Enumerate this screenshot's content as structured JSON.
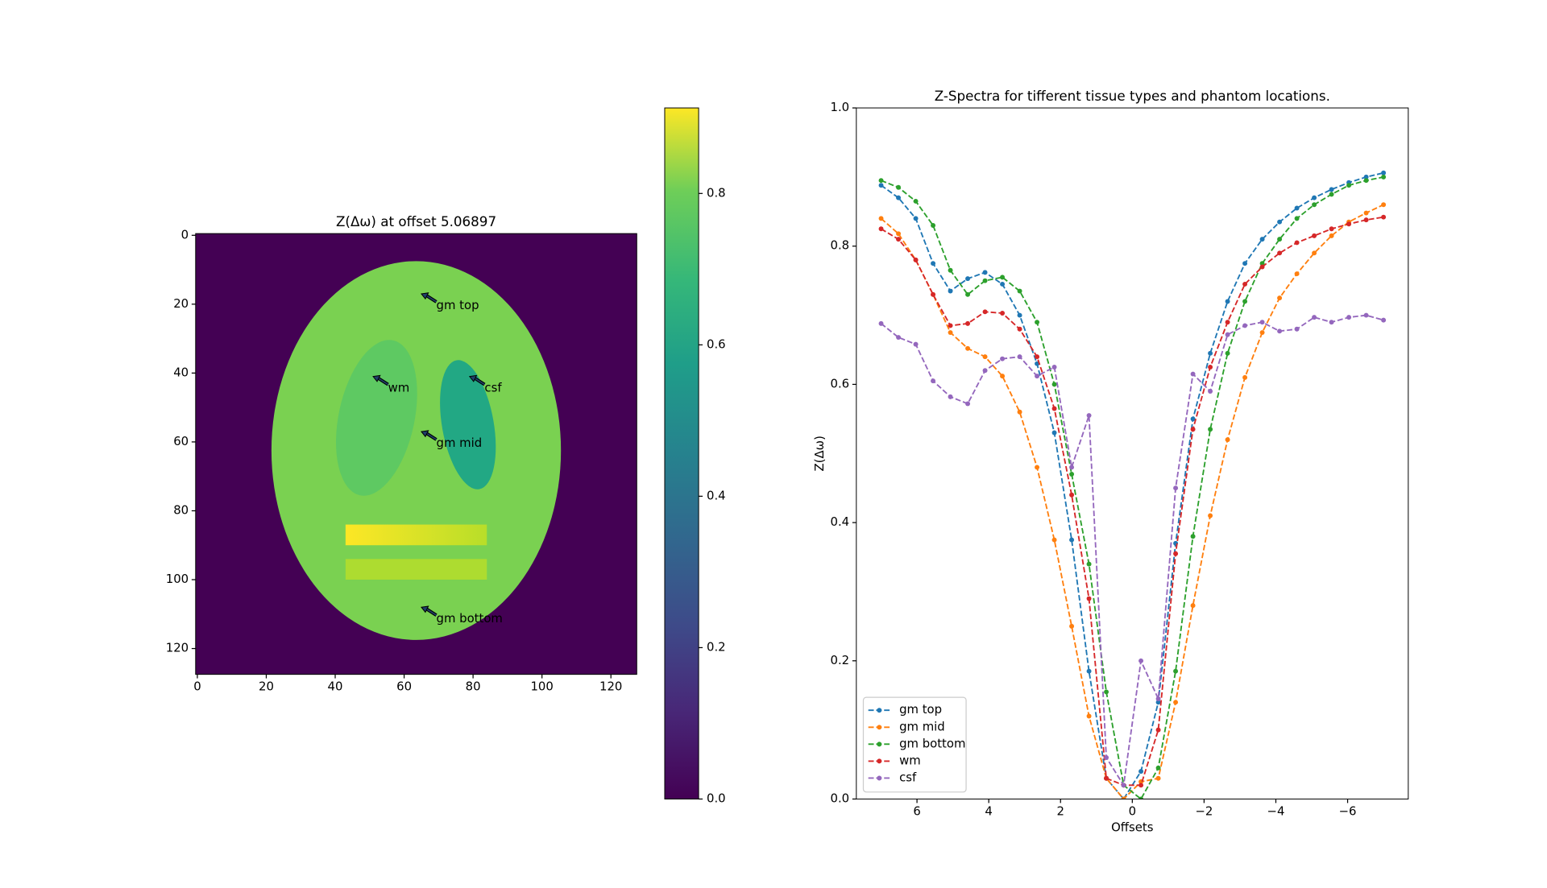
{
  "chart_data": [
    {
      "type": "image",
      "title": "Z(Δω) at offset 5.06897",
      "xlim": [
        -0.5,
        127.5
      ],
      "ylim": [
        127.5,
        -0.5
      ],
      "xticks": [
        0,
        20,
        40,
        60,
        80,
        100,
        120
      ],
      "yticks": [
        0,
        20,
        40,
        60,
        80,
        100,
        120
      ],
      "colormap": "viridis",
      "clim": [
        0,
        0.913
      ],
      "cticks": [
        {
          "value": 0,
          "label": "0.0"
        },
        0.2,
        0.4,
        0.6,
        0.8
      ],
      "annotations": [
        {
          "text": "gm top",
          "x": 65,
          "y": 17
        },
        {
          "text": "wm",
          "x": 51,
          "y": 41
        },
        {
          "text": "csf",
          "x": 79,
          "y": 41
        },
        {
          "text": "gm mid",
          "x": 65,
          "y": 57
        },
        {
          "text": "gm bottom",
          "x": 65,
          "y": 108
        }
      ]
    },
    {
      "type": "line",
      "title": "Z-Spectra for tifferent tissue types and phantom locations.",
      "xlabel": "Offsets",
      "ylabel": "Z(Δω)",
      "x": [
        7,
        6.51724,
        6.03448,
        5.55172,
        5.06897,
        4.58621,
        4.10345,
        3.62069,
        3.13793,
        2.65517,
        2.17241,
        1.68966,
        1.2069,
        0.72414,
        0.24138,
        -0.24138,
        -0.72414,
        -1.2069,
        -1.68966,
        -2.17241,
        -2.65517,
        -3.13793,
        -3.62069,
        -4.10345,
        -4.58621,
        -5.06897,
        -5.55172,
        -6.03448,
        -6.51724,
        -7
      ],
      "xlim": [
        7.69,
        -7.69
      ],
      "xticks": [
        6,
        4,
        2,
        0,
        {
          "value": -2,
          "label": "−2"
        },
        {
          "value": -4,
          "label": "−4"
        },
        {
          "value": -6,
          "label": "−6"
        }
      ],
      "ylim": [
        0,
        1
      ],
      "yticks": [
        {
          "value": 0,
          "label": "0.0"
        },
        0.2,
        0.4,
        0.6,
        0.8,
        {
          "value": 1,
          "label": "1.0"
        }
      ],
      "legend": "lower left",
      "series": [
        {
          "name": "gm top",
          "color": "#1f77b4",
          "values": [
            0.888,
            0.87,
            0.84,
            0.775,
            0.735,
            0.753,
            0.762,
            0.745,
            0.7,
            0.63,
            0.53,
            0.375,
            0.185,
            0.03,
            0.0,
            0.04,
            0.14,
            0.37,
            0.55,
            0.645,
            0.72,
            0.775,
            0.81,
            0.835,
            0.855,
            0.87,
            0.882,
            0.892,
            0.9,
            0.906
          ]
        },
        {
          "name": "gm mid",
          "color": "#ff7f0e",
          "values": [
            0.84,
            0.818,
            0.78,
            0.73,
            0.675,
            0.652,
            0.64,
            0.612,
            0.56,
            0.48,
            0.375,
            0.25,
            0.12,
            0.03,
            0.0,
            0.025,
            0.03,
            0.14,
            0.28,
            0.41,
            0.52,
            0.61,
            0.675,
            0.725,
            0.76,
            0.79,
            0.815,
            0.835,
            0.848,
            0.86
          ]
        },
        {
          "name": "gm bottom",
          "color": "#2ca02c",
          "values": [
            0.895,
            0.885,
            0.865,
            0.83,
            0.765,
            0.73,
            0.75,
            0.755,
            0.735,
            0.69,
            0.6,
            0.47,
            0.34,
            0.155,
            0.02,
            0.0,
            0.045,
            0.185,
            0.38,
            0.535,
            0.645,
            0.72,
            0.775,
            0.81,
            0.84,
            0.86,
            0.875,
            0.888,
            0.895,
            0.9
          ]
        },
        {
          "name": "wm",
          "color": "#d62728",
          "values": [
            0.825,
            0.81,
            0.78,
            0.73,
            0.685,
            0.688,
            0.705,
            0.703,
            0.68,
            0.64,
            0.565,
            0.44,
            0.29,
            0.03,
            0.02,
            0.02,
            0.1,
            0.355,
            0.535,
            0.625,
            0.69,
            0.745,
            0.77,
            0.79,
            0.805,
            0.815,
            0.825,
            0.832,
            0.838,
            0.842
          ]
        },
        {
          "name": "csf",
          "color": "#9467bd",
          "values": [
            0.688,
            0.668,
            0.658,
            0.605,
            0.582,
            0.572,
            0.62,
            0.637,
            0.64,
            0.612,
            0.625,
            0.48,
            0.555,
            0.06,
            0.02,
            0.2,
            0.145,
            0.45,
            0.615,
            0.59,
            0.672,
            0.685,
            0.69,
            0.677,
            0.68,
            0.697,
            0.69,
            0.697,
            0.7,
            0.693
          ]
        }
      ]
    }
  ]
}
